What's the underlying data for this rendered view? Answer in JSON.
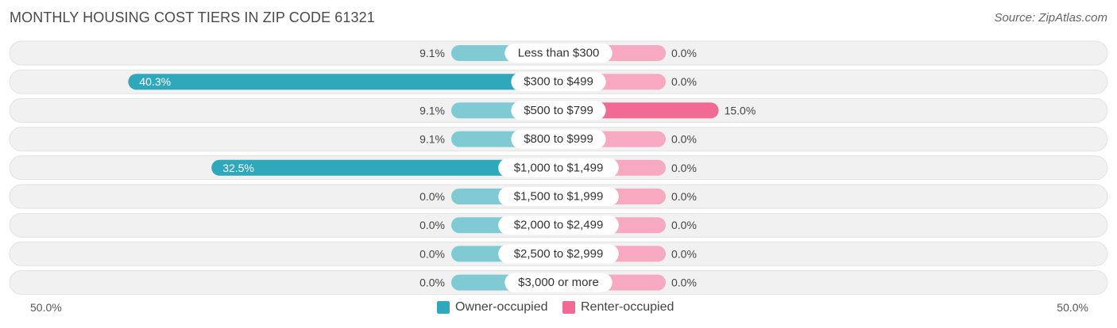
{
  "title": "MONTHLY HOUSING COST TIERS IN ZIP CODE 61321",
  "source": "Source: ZipAtlas.com",
  "colors": {
    "owner": "#2ea8ba",
    "owner_light": "#7fcad3",
    "renter": "#f06a93",
    "renter_light": "#f7a9c1",
    "row_bg": "#f1f1f1"
  },
  "chart_data": {
    "type": "bar",
    "orientation": "horizontal-diverging",
    "categories": [
      "Less than $300",
      "$300 to $499",
      "$500 to $799",
      "$800 to $999",
      "$1,000 to $1,499",
      "$1,500 to $1,999",
      "$2,000 to $2,499",
      "$2,500 to $2,999",
      "$3,000 or more"
    ],
    "series": [
      {
        "name": "Owner-occupied",
        "values": [
          9.1,
          40.3,
          9.1,
          9.1,
          32.5,
          0.0,
          0.0,
          0.0,
          0.0
        ],
        "labels": [
          "9.1%",
          "40.3%",
          "9.1%",
          "9.1%",
          "32.5%",
          "0.0%",
          "0.0%",
          "0.0%",
          "0.0%"
        ]
      },
      {
        "name": "Renter-occupied",
        "values": [
          0.0,
          0.0,
          15.0,
          0.0,
          0.0,
          0.0,
          0.0,
          0.0,
          0.0
        ],
        "labels": [
          "0.0%",
          "0.0%",
          "15.0%",
          "0.0%",
          "0.0%",
          "0.0%",
          "0.0%",
          "0.0%",
          "0.0%"
        ]
      }
    ],
    "xlim": [
      -50,
      50
    ],
    "axis_labels": {
      "left": "50.0%",
      "right": "50.0%"
    },
    "legend_position": "bottom-center"
  }
}
